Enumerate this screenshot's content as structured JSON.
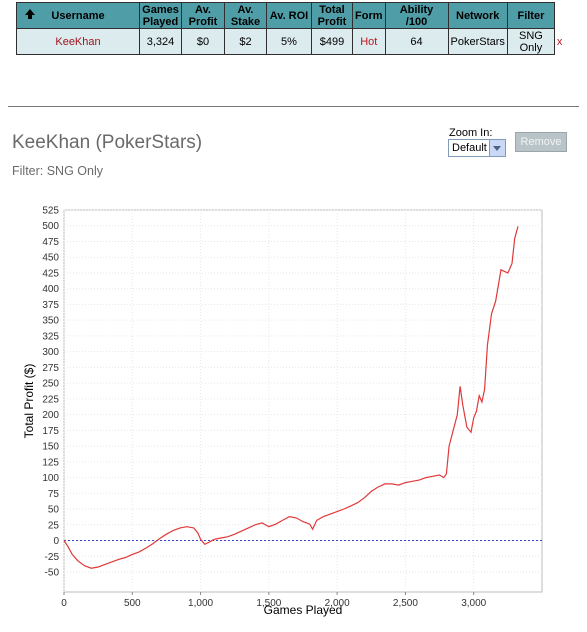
{
  "table": {
    "headers": [
      "Username",
      "Games Played",
      "Av. Profit",
      "Av. Stake",
      "Av. ROI",
      "Total Profit",
      "Form",
      "Ability /100",
      "Network",
      "Filter"
    ],
    "headers_lines": [
      [
        "Username"
      ],
      [
        "Games",
        "Played"
      ],
      [
        "Av.",
        "Profit"
      ],
      [
        "Av.",
        "Stake"
      ],
      [
        "Av. ROI"
      ],
      [
        "Total",
        "Profit"
      ],
      [
        "Form"
      ],
      [
        "Ability /100"
      ],
      [
        "Network"
      ],
      [
        "Filter"
      ]
    ],
    "row": {
      "username": "KeeKhan",
      "games_played": "3,324",
      "av_profit": "$0",
      "av_stake": "$2",
      "av_roi": "5%",
      "total_profit": "$499",
      "form": "Hot",
      "ability": "64",
      "network": "PokerStars",
      "filter_lines": [
        "SNG",
        "Only"
      ],
      "remove": "x"
    }
  },
  "panel": {
    "title": "KeeKhan (PokerStars)",
    "filter": "Filter: SNG Only",
    "zoom_label": "Zoom In:",
    "zoom_value": "Default",
    "remove_label": "Remove"
  },
  "colors": {
    "header_bg": "#4f9ea7",
    "row_bg": "#dcebee",
    "accent_red": "#c0141e",
    "line": "#e0393a"
  },
  "chart_data": {
    "type": "line",
    "xlabel": "Games Played",
    "ylabel": "Total Profit ($)",
    "xlim": [
      0,
      3500
    ],
    "ylim": [
      -70,
      525
    ],
    "x_ticks": [
      0,
      500,
      1000,
      1500,
      2000,
      2500,
      3000
    ],
    "x_tick_labels": [
      "0",
      "500",
      "1,000",
      "1,500",
      "2,000",
      "2,500",
      "3,000"
    ],
    "y_ticks": [
      -50,
      -25,
      0,
      25,
      50,
      75,
      100,
      125,
      150,
      175,
      200,
      225,
      250,
      275,
      300,
      325,
      350,
      375,
      400,
      425,
      450,
      475,
      500,
      525
    ],
    "zero_line": "dashed blue",
    "grid": true,
    "series": [
      {
        "x": [
          0,
          30,
          60,
          100,
          150,
          200,
          250,
          300,
          350,
          400,
          450,
          500,
          550,
          600,
          650,
          700,
          750,
          800,
          850,
          900,
          950,
          980,
          1000,
          1030,
          1060,
          1100,
          1150,
          1200,
          1250,
          1300,
          1350,
          1400,
          1450,
          1500,
          1550,
          1600,
          1650,
          1700,
          1750,
          1800,
          1820,
          1850,
          1900,
          1950,
          2000,
          2050,
          2100,
          2150,
          2200,
          2250,
          2300,
          2350,
          2400,
          2450,
          2500,
          2550,
          2600,
          2650,
          2700,
          2750,
          2780,
          2800,
          2820,
          2850,
          2880,
          2900,
          2920,
          2950,
          2980,
          3000,
          3020,
          3040,
          3060,
          3080,
          3100,
          3130,
          3160,
          3200,
          3250,
          3280,
          3300,
          3324
        ],
        "y": [
          0,
          -10,
          -22,
          -32,
          -40,
          -44,
          -42,
          -38,
          -34,
          -30,
          -27,
          -22,
          -18,
          -12,
          -5,
          3,
          10,
          16,
          20,
          22,
          20,
          12,
          2,
          -6,
          -3,
          2,
          4,
          6,
          10,
          15,
          20,
          25,
          28,
          22,
          26,
          32,
          38,
          36,
          30,
          26,
          18,
          32,
          38,
          42,
          46,
          50,
          55,
          60,
          68,
          78,
          85,
          90,
          90,
          88,
          92,
          94,
          96,
          100,
          102,
          104,
          100,
          106,
          150,
          175,
          200,
          245,
          215,
          180,
          172,
          195,
          205,
          230,
          220,
          240,
          310,
          360,
          380,
          430,
          425,
          440,
          480,
          499
        ]
      }
    ]
  }
}
